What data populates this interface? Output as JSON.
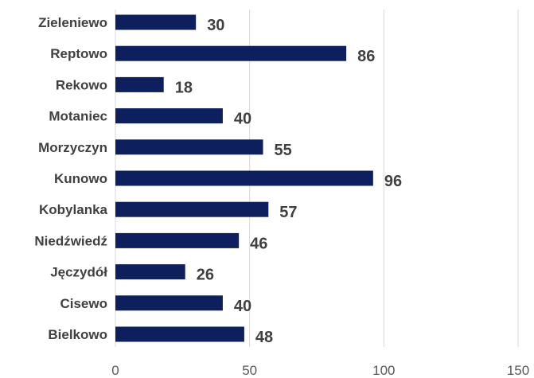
{
  "chart_data": {
    "type": "bar",
    "orientation": "horizontal",
    "categories": [
      "Zieleniewo",
      "Reptowo",
      "Rekowo",
      "Motaniec",
      "Morzyczyn",
      "Kunowo",
      "Kobylanka",
      "Niedźwiedź",
      "Jęczydół",
      "Cisewo",
      "Bielkowo"
    ],
    "values": [
      30,
      86,
      18,
      40,
      55,
      96,
      57,
      46,
      26,
      40,
      48
    ],
    "data_labels": [
      "30",
      "86",
      "18",
      "40",
      "55",
      "96",
      "57",
      "46",
      "26",
      "40",
      "48"
    ],
    "xticks": [
      0,
      50,
      100,
      150
    ],
    "xtick_labels": [
      "0",
      "50",
      "100",
      "150"
    ],
    "xlim": [
      0,
      150
    ],
    "grid": "vertical",
    "legend": "none",
    "title": "",
    "xlabel": "",
    "ylabel": "",
    "colors": {
      "bar": "#0d1f5c",
      "grid": "#d9d9d9",
      "label": "#404040",
      "tick": "#595959"
    }
  }
}
